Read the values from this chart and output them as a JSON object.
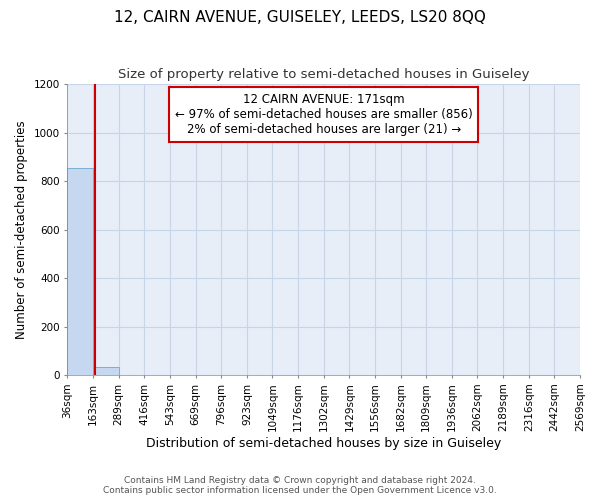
{
  "title": "12, CAIRN AVENUE, GUISELEY, LEEDS, LS20 8QQ",
  "subtitle": "Size of property relative to semi-detached houses in Guiseley",
  "xlabel": "Distribution of semi-detached houses by size in Guiseley",
  "ylabel": "Number of semi-detached properties",
  "footer_line1": "Contains HM Land Registry data © Crown copyright and database right 2024.",
  "footer_line2": "Contains public sector information licensed under the Open Government Licence v3.0.",
  "annotation_line1": "12 CAIRN AVENUE: 171sqm",
  "annotation_line2": "← 97% of semi-detached houses are smaller (856)",
  "annotation_line3": "2% of semi-detached houses are larger (21) →",
  "bin_edges": [
    36,
    163,
    289,
    416,
    543,
    669,
    796,
    923,
    1049,
    1176,
    1302,
    1429,
    1556,
    1682,
    1809,
    1936,
    2062,
    2189,
    2316,
    2442,
    2569
  ],
  "bin_labels": [
    "36sqm",
    "163sqm",
    "289sqm",
    "416sqm",
    "543sqm",
    "669sqm",
    "796sqm",
    "923sqm",
    "1049sqm",
    "1176sqm",
    "1302sqm",
    "1429sqm",
    "1556sqm",
    "1682sqm",
    "1809sqm",
    "1936sqm",
    "2062sqm",
    "2189sqm",
    "2316sqm",
    "2442sqm",
    "2569sqm"
  ],
  "bar_heights": [
    856,
    35,
    2,
    1,
    0,
    0,
    0,
    0,
    0,
    0,
    0,
    0,
    0,
    0,
    0,
    0,
    0,
    0,
    0,
    0
  ],
  "bar_color": "#c5d8f0",
  "bar_edge_color": "#7aafd4",
  "vline_x": 171,
  "vline_color": "#cc0000",
  "annotation_box_edgecolor": "#cc0000",
  "ylim": [
    0,
    1200
  ],
  "yticks": [
    0,
    200,
    400,
    600,
    800,
    1000,
    1200
  ],
  "grid_color": "#c8d4e8",
  "bg_color": "#e8eef8",
  "title_fontsize": 11,
  "subtitle_fontsize": 9.5,
  "ylabel_fontsize": 8.5,
  "xlabel_fontsize": 9,
  "tick_fontsize": 7.5,
  "footer_fontsize": 6.5,
  "annot_fontsize": 8.5
}
